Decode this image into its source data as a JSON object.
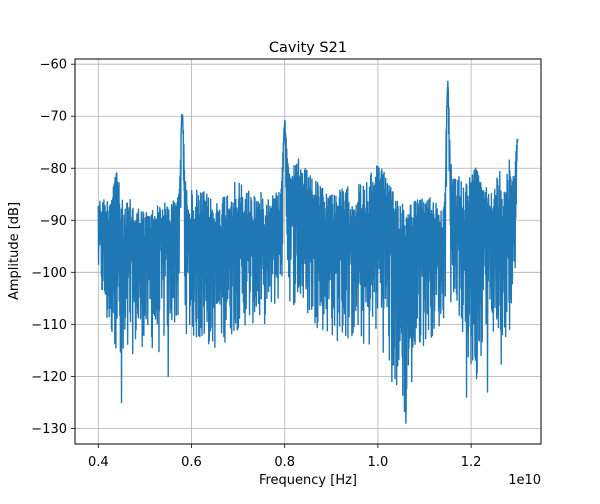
{
  "colors": {
    "series": "#1f77b4",
    "grid": "#b0b0b0",
    "axis": "#000000"
  },
  "chart_data": {
    "type": "line",
    "title": "Cavity S21",
    "xlabel": "Frequency [Hz]",
    "ylabel": "Amplitude [dB]",
    "x_offset_label": "1e10",
    "xlim": [
      3500000000.0,
      13500000000.0
    ],
    "ylim": [
      -133,
      -59
    ],
    "grid": true,
    "xticks": [
      4000000000.0,
      6000000000.0,
      8000000000.0,
      10000000000.0,
      12000000000.0
    ],
    "xtick_labels": [
      "0.4",
      "0.6",
      "0.8",
      "1.0",
      "1.2"
    ],
    "yticks": [
      -60,
      -70,
      -80,
      -90,
      -100,
      -110,
      -120,
      -130
    ],
    "ytick_labels": [
      "−60",
      "−70",
      "−80",
      "−90",
      "−100",
      "−110",
      "−120",
      "−130"
    ],
    "series": [
      {
        "x": [
          4000000000.0,
          4200000000.0,
          4400000000.0,
          4500000000.0,
          4700000000.0,
          5000000000.0,
          5300000000.0,
          5600000000.0,
          5750000000.0,
          5800000000.0,
          5900000000.0,
          6000000000.0,
          6200000000.0,
          6500000000.0,
          6800000000.0,
          7000000000.0,
          7300000000.0,
          7600000000.0,
          7900000000.0,
          8000000000.0,
          8100000000.0,
          8300000000.0,
          8600000000.0,
          8900000000.0,
          9200000000.0,
          9500000000.0,
          9800000000.0,
          10000000000.0,
          10300000000.0,
          10600000000.0,
          10900000000.0,
          11200000000.0,
          11400000000.0,
          11500000000.0,
          11600000000.0,
          11700000000.0,
          11900000000.0,
          12100000000.0,
          12300000000.0,
          12500000000.0,
          12700000000.0,
          12900000000.0,
          13000000000.0
        ],
        "y": [
          -88,
          -95,
          -82,
          -100,
          -92,
          -96,
          -91,
          -93,
          -84,
          -68,
          -88,
          -95,
          -93,
          -95,
          -90,
          -94,
          -93,
          -92,
          -90,
          -70,
          -82,
          -86,
          -88,
          -92,
          -90,
          -93,
          -94,
          -83,
          -90,
          -96,
          -89,
          -92,
          -93,
          -63,
          -85,
          -90,
          -92,
          -80,
          -88,
          -90,
          -94,
          -88,
          -74
        ]
      }
    ],
    "noise_envelope": {
      "x": [
        4000000000.0,
        4200000000.0,
        4400000000.0,
        4500000000.0,
        4700000000.0,
        5000000000.0,
        5300000000.0,
        5600000000.0,
        5900000000.0,
        6200000000.0,
        6500000000.0,
        6800000000.0,
        7000000000.0,
        7300000000.0,
        7600000000.0,
        7900000000.0,
        8300000000.0,
        8600000000.0,
        8900000000.0,
        9200000000.0,
        9500000000.0,
        9800000000.0,
        10000000000.0,
        10300000000.0,
        10600000000.0,
        10900000000.0,
        11200000000.0,
        11400000000.0,
        11700000000.0,
        11900000000.0,
        12100000000.0,
        12300000000.0,
        12500000000.0,
        12700000000.0,
        12900000000.0,
        13000000000.0
      ],
      "lower": [
        -102,
        -112,
        -115,
        -125,
        -116,
        -114,
        -116,
        -110,
        -112,
        -114,
        -115,
        -113,
        -111,
        -110,
        -110,
        -105,
        -107,
        -110,
        -112,
        -114,
        -113,
        -115,
        -112,
        -121,
        -129,
        -115,
        -112,
        -110,
        -106,
        -118,
        -124,
        -110,
        -112,
        -122,
        -105,
        -98
      ],
      "upper": [
        -86,
        -85,
        -80,
        -86,
        -86,
        -88,
        -87,
        -86,
        -84,
        -84,
        -86,
        -84,
        -82,
        -84,
        -85,
        -84,
        -78,
        -82,
        -84,
        -84,
        -83,
        -82,
        -78,
        -84,
        -86,
        -86,
        -85,
        -88,
        -80,
        -82,
        -80,
        -83,
        -84,
        -76,
        -80,
        -73
      ]
    },
    "extreme_dips": [
      {
        "x": 4500000000.0,
        "y": -125
      },
      {
        "x": 5500000000.0,
        "y": -120
      },
      {
        "x": 10300000000.0,
        "y": -121
      },
      {
        "x": 10600000000.0,
        "y": -129
      },
      {
        "x": 11900000000.0,
        "y": -124
      },
      {
        "x": 12350000000.0,
        "y": -123
      }
    ]
  }
}
